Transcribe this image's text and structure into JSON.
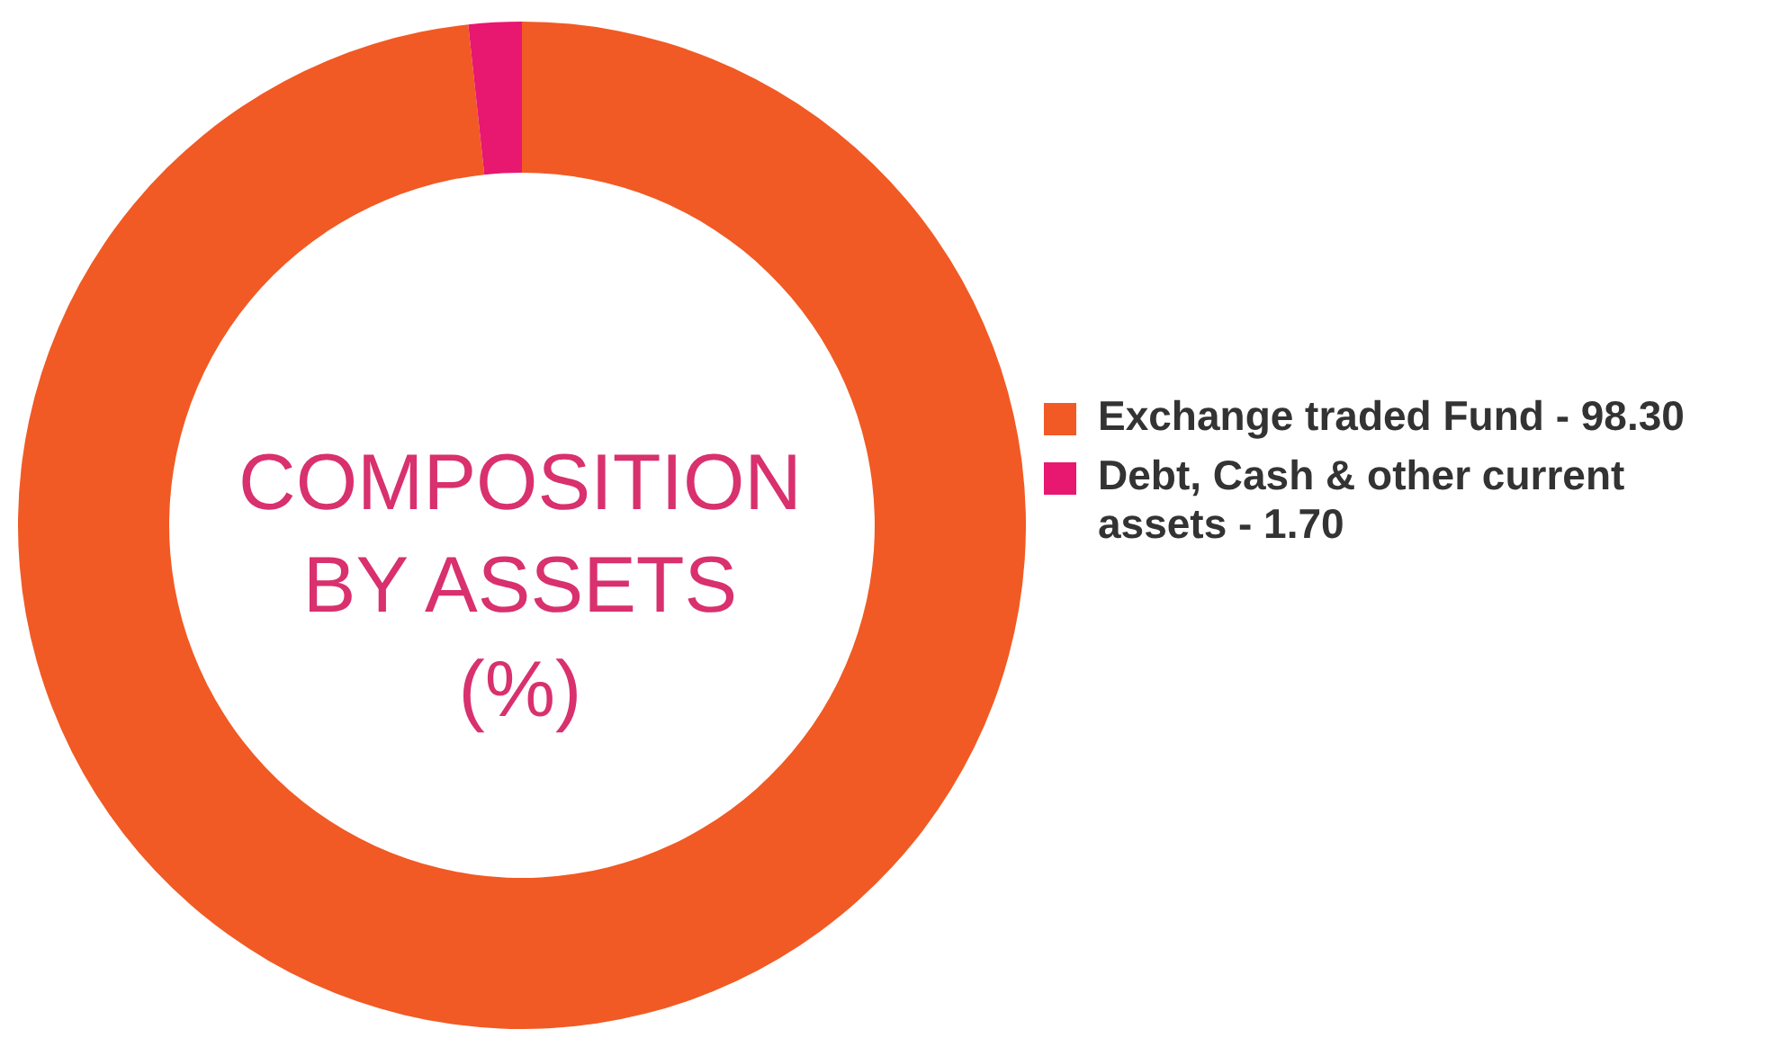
{
  "chart_data": {
    "type": "donut",
    "title": "COMPOSITION BY ASSETS (%)",
    "categories": [
      "Exchange traded Fund - 98.30",
      "Debt, Cash & other current assets - 1.70"
    ],
    "values": [
      98.3,
      1.7
    ],
    "colors": [
      "#f15a24",
      "#e8176f"
    ],
    "legend": "right"
  }
}
